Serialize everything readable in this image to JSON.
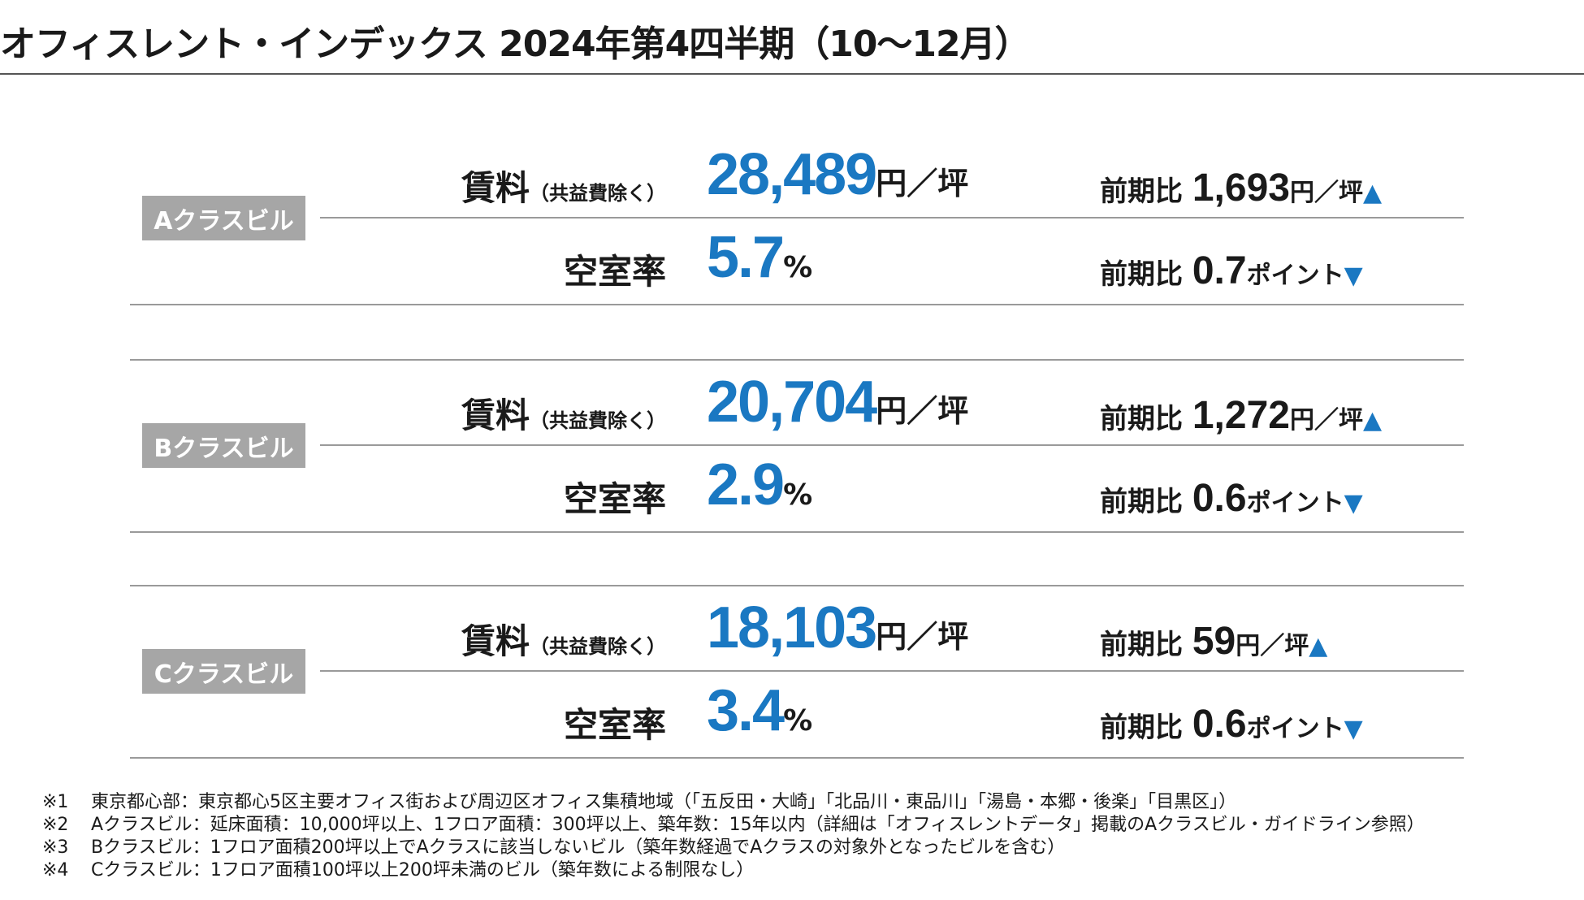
{
  "title": "オフィスレント・インデックス 2024年第4四半期（10～12月）",
  "labels": {
    "rent": "賃料",
    "rent_sub": "（共益費除く）",
    "vacancy": "空室率",
    "compare": "前期比",
    "rent_unit": "円／坪",
    "pct_unit": "%",
    "point_unit": "ポイント"
  },
  "blocks": [
    {
      "class_label": "Aクラスビル",
      "rent": "28,489",
      "rent_change": "1,693",
      "rent_arrow": "▲",
      "vacancy": "5.7",
      "vacancy_change": "0.7",
      "vacancy_arrow": "▼"
    },
    {
      "class_label": "Bクラスビル",
      "rent": "20,704",
      "rent_change": "1,272",
      "rent_arrow": "▲",
      "vacancy": "2.9",
      "vacancy_change": "0.6",
      "vacancy_arrow": "▼"
    },
    {
      "class_label": "Cクラスビル",
      "rent": "18,103",
      "rent_change": "59",
      "rent_arrow": "▲",
      "vacancy": "3.4",
      "vacancy_change": "0.6",
      "vacancy_arrow": "▼"
    }
  ],
  "colors": {
    "accent": "#1a78c2",
    "label_bg": "#a6a6a6"
  },
  "notes": [
    {
      "mark": "※1",
      "text": "東京都心部：東京都心5区主要オフィス街および周辺区オフィス集積地域（「五反田・大崎」「北品川・東品川」「湯島・本郷・後楽」「目黒区」）"
    },
    {
      "mark": "※2",
      "text": "Aクラスビル：延床面積：10,000坪以上、1フロア面積：300坪以上、築年数：15年以内（詳細は「オフィスレントデータ」掲載のAクラスビル・ガイドライン参照）"
    },
    {
      "mark": "※3",
      "text": "Bクラスビル：1フロア面積200坪以上でAクラスに該当しないビル（築年数経過でAクラスの対象外となったビルを含む）"
    },
    {
      "mark": "※4",
      "text": "Cクラスビル：1フロア面積100坪以上200坪未満のビル（築年数による制限なし）"
    }
  ]
}
